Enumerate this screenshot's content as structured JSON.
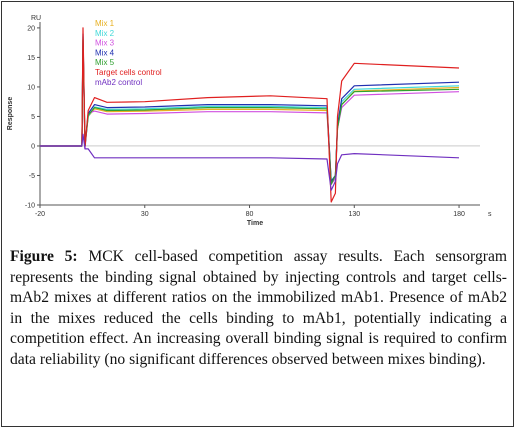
{
  "chart_data": {
    "type": "line",
    "xlabel": "Time",
    "ylabel": "Response",
    "y_unit": "RU",
    "x_unit": "s",
    "xlim": [
      -20,
      190
    ],
    "ylim": [
      -10,
      21
    ],
    "x_ticks": [
      -20,
      30,
      80,
      130,
      180
    ],
    "y_ticks": [
      20,
      15,
      10,
      5,
      0,
      -5,
      -10
    ],
    "grid": false,
    "legend_position": "top-left",
    "series": [
      {
        "name": "Mix 1",
        "color": "#e8b020",
        "points": [
          [
            -20,
            0
          ],
          [
            0,
            0
          ],
          [
            0.5,
            18
          ],
          [
            1.5,
            0
          ],
          [
            3,
            5
          ],
          [
            6,
            6.3
          ],
          [
            12,
            5.8
          ],
          [
            30,
            5.9
          ],
          [
            60,
            6.2
          ],
          [
            90,
            6.2
          ],
          [
            117,
            6.0
          ],
          [
            119,
            -6
          ],
          [
            121,
            -5
          ],
          [
            122,
            3
          ],
          [
            124,
            7
          ],
          [
            130,
            9.3
          ],
          [
            180,
            9.9
          ]
        ]
      },
      {
        "name": "Mix 2",
        "color": "#40d8d8",
        "points": [
          [
            -20,
            0
          ],
          [
            0,
            0
          ],
          [
            0.5,
            18.5
          ],
          [
            1.5,
            0
          ],
          [
            3,
            5
          ],
          [
            6,
            6.6
          ],
          [
            12,
            6.2
          ],
          [
            30,
            6.3
          ],
          [
            60,
            6.7
          ],
          [
            90,
            6.7
          ],
          [
            117,
            6.5
          ],
          [
            119,
            -6
          ],
          [
            121,
            -5
          ],
          [
            122,
            3
          ],
          [
            124,
            7.5
          ],
          [
            130,
            9.6
          ],
          [
            180,
            10.2
          ]
        ]
      },
      {
        "name": "Mix 3",
        "color": "#d050e0",
        "points": [
          [
            -20,
            0
          ],
          [
            0,
            0
          ],
          [
            0.5,
            17.5
          ],
          [
            1.5,
            -0.5
          ],
          [
            3,
            5.5
          ],
          [
            6,
            5.9
          ],
          [
            12,
            5.4
          ],
          [
            30,
            5.5
          ],
          [
            60,
            5.8
          ],
          [
            90,
            5.8
          ],
          [
            117,
            5.6
          ],
          [
            119,
            -6.5
          ],
          [
            121,
            -5.5
          ],
          [
            122,
            3
          ],
          [
            124,
            6.5
          ],
          [
            130,
            8.6
          ],
          [
            180,
            9.2
          ]
        ]
      },
      {
        "name": "Mix 4",
        "color": "#2030b0",
        "points": [
          [
            -20,
            0
          ],
          [
            0,
            0
          ],
          [
            0.5,
            19
          ],
          [
            1.5,
            0
          ],
          [
            3,
            5.5
          ],
          [
            6,
            7.0
          ],
          [
            12,
            6.5
          ],
          [
            30,
            6.6
          ],
          [
            60,
            7.0
          ],
          [
            90,
            7.0
          ],
          [
            117,
            6.8
          ],
          [
            119,
            -6
          ],
          [
            121,
            -5
          ],
          [
            122,
            3.5
          ],
          [
            124,
            8
          ],
          [
            130,
            10.2
          ],
          [
            180,
            10.8
          ]
        ]
      },
      {
        "name": "Mix 5",
        "color": "#30a030",
        "points": [
          [
            -20,
            0
          ],
          [
            0,
            0
          ],
          [
            0.5,
            18
          ],
          [
            1.5,
            0
          ],
          [
            3,
            5.2
          ],
          [
            6,
            6.5
          ],
          [
            12,
            6.0
          ],
          [
            30,
            6.1
          ],
          [
            60,
            6.5
          ],
          [
            90,
            6.5
          ],
          [
            117,
            6.3
          ],
          [
            119,
            -6.5
          ],
          [
            121,
            -5
          ],
          [
            122,
            3
          ],
          [
            124,
            7
          ],
          [
            130,
            9.2
          ],
          [
            180,
            9.6
          ]
        ]
      },
      {
        "name": "Target cells control",
        "color": "#e02020",
        "points": [
          [
            -20,
            0
          ],
          [
            0,
            0
          ],
          [
            0.5,
            20
          ],
          [
            1.5,
            0
          ],
          [
            3,
            6
          ],
          [
            6,
            8.2
          ],
          [
            12,
            7.4
          ],
          [
            30,
            7.5
          ],
          [
            60,
            8.2
          ],
          [
            90,
            8.5
          ],
          [
            117,
            8.0
          ],
          [
            119,
            -9.5
          ],
          [
            121,
            -8
          ],
          [
            122,
            5
          ],
          [
            124,
            11
          ],
          [
            130,
            14.0
          ],
          [
            180,
            13.2
          ]
        ]
      },
      {
        "name": "mAb2 control",
        "color": "#7030c0",
        "points": [
          [
            -20,
            0
          ],
          [
            0,
            0
          ],
          [
            0.5,
            2
          ],
          [
            1.5,
            -0.5
          ],
          [
            3,
            -0.5
          ],
          [
            6,
            -2.0
          ],
          [
            12,
            -2.0
          ],
          [
            30,
            -2.0
          ],
          [
            60,
            -2.0
          ],
          [
            90,
            -2.0
          ],
          [
            117,
            -2.2
          ],
          [
            119,
            -7.5
          ],
          [
            121,
            -6
          ],
          [
            122,
            -3
          ],
          [
            124,
            -1.5
          ],
          [
            130,
            -1.3
          ],
          [
            180,
            -2.0
          ]
        ]
      }
    ]
  },
  "caption": {
    "label": "Figure 5:",
    "text": " MCK cell-based competition assay results. Each sensorgram represents the binding signal obtained by injecting controls and target cells-mAb2 mixes at different ratios on the immobilized mAb1. Presence of mAb2 in the mixes reduced the cells binding to mAb1, potentially indicating a competition effect. An increasing overall binding signal is required to confirm data reliability (no significant differences observed between mixes binding)."
  }
}
